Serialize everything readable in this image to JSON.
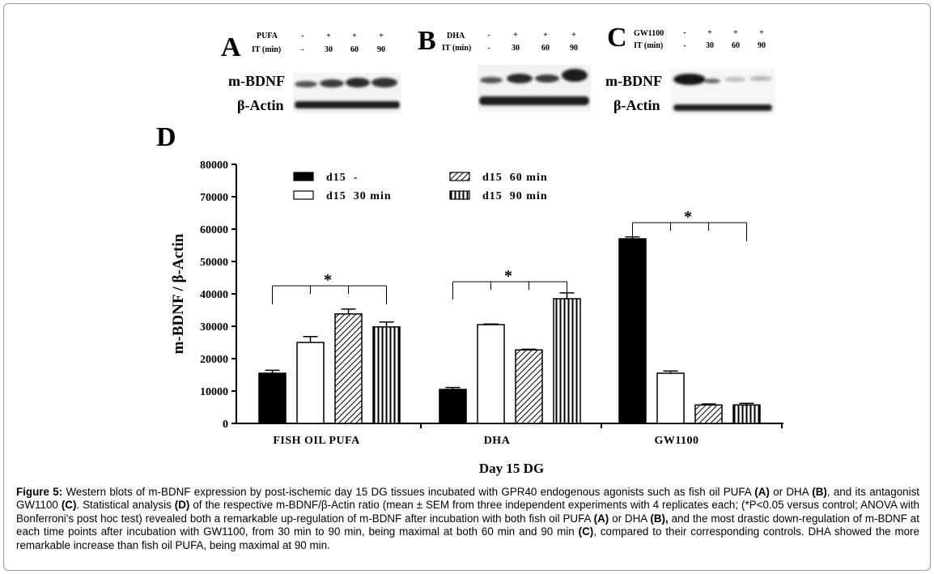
{
  "panels": {
    "A": {
      "letter": "A",
      "row1_label": "PUFA",
      "row1_values": [
        "-",
        "+",
        "+",
        "+"
      ],
      "row2_label": "IT (min)",
      "row2_values": [
        "-",
        "30",
        "60",
        "90"
      ],
      "band1_label": "m-BDNF",
      "band2_label": "β-Actin"
    },
    "B": {
      "letter": "B",
      "row1_label": "DHA",
      "row1_values": [
        "-",
        "+",
        "+",
        "+"
      ],
      "row2_label": "IT (min)",
      "row2_values": [
        "-",
        "30",
        "60",
        "90"
      ]
    },
    "C": {
      "letter": "C",
      "row1_label": "GW1100",
      "row1_values": [
        "-",
        "+",
        "+",
        "+"
      ],
      "row2_label": "IT (min)",
      "row2_values": [
        "-",
        "30",
        "60",
        "90"
      ],
      "band1_label": "m-BDNF",
      "band2_label": "β-Actin"
    },
    "D": {
      "letter": "D"
    }
  },
  "colors": {
    "bar_fill_control": "#000000",
    "bar_outline": "#000000",
    "background": "#ffffff"
  },
  "chart_data": {
    "type": "bar",
    "xlabel": "Day 15 DG",
    "ylabel": "m-BDNF / β-Actin",
    "ylim": [
      0,
      80000
    ],
    "yticks": [
      0,
      10000,
      20000,
      30000,
      40000,
      50000,
      60000,
      70000,
      80000
    ],
    "categories": [
      "FISH OIL PUFA",
      "DHA",
      "GW1100"
    ],
    "legend_placement": "top-left",
    "series": [
      {
        "name": "d15  -",
        "pattern": "solid",
        "values": [
          15500,
          10500,
          57000
        ],
        "errors": [
          900,
          600,
          600
        ]
      },
      {
        "name": "d15  30 min",
        "pattern": "open",
        "values": [
          25000,
          30500,
          15500
        ],
        "errors": [
          1800,
          200,
          700
        ]
      },
      {
        "name": "d15  60 min",
        "pattern": "diagonal",
        "values": [
          33800,
          22700,
          5700
        ],
        "errors": [
          1500,
          200,
          300
        ]
      },
      {
        "name": "d15  90 min",
        "pattern": "vertical",
        "values": [
          29800,
          38500,
          5700
        ],
        "errors": [
          1500,
          1800,
          500
        ]
      }
    ],
    "significance": [
      {
        "group": "FISH OIL PUFA",
        "label": "*"
      },
      {
        "group": "DHA",
        "label": "*"
      },
      {
        "group": "GW1100",
        "label": "*"
      }
    ]
  },
  "caption": {
    "runs": [
      {
        "text": "Figure 5:",
        "bold": true
      },
      {
        "text": " Western blots of m-BDNF expression by post-ischemic day 15 DG tissues incubated with GPR40 endogenous agonists such as fish oil PUFA ",
        "bold": false
      },
      {
        "text": "(A)",
        "bold": true
      },
      {
        "text": " or DHA ",
        "bold": false
      },
      {
        "text": "(B)",
        "bold": true
      },
      {
        "text": ", and its antagonist GW1100 ",
        "bold": false
      },
      {
        "text": "(C)",
        "bold": true
      },
      {
        "text": ". Statistical analysis ",
        "bold": false
      },
      {
        "text": "(D)",
        "bold": true
      },
      {
        "text": " of the respective m-BDNF/β-Actin ratio (mean ± SEM from three independent experiments with 4 replicates each; (*P<0.05 versus control; ANOVA with Bonferroni's post hoc test) revealed both a remarkable up-regulation of m-BDNF after incubation with both fish oil PUFA ",
        "bold": false
      },
      {
        "text": "(A)",
        "bold": true
      },
      {
        "text": " or DHA ",
        "bold": false
      },
      {
        "text": "(B),",
        "bold": true
      },
      {
        "text": " and the most drastic down-regulation of m-BDNF at each time points after incubation with GW1100, from 30 min to 90 min, being maximal at both 60 min and 90 min ",
        "bold": false
      },
      {
        "text": "(C)",
        "bold": true
      },
      {
        "text": ", compared to their corresponding controls. DHA showed the more remarkable increase than fish oil PUFA, being maximal at 90 min.",
        "bold": false
      }
    ]
  }
}
